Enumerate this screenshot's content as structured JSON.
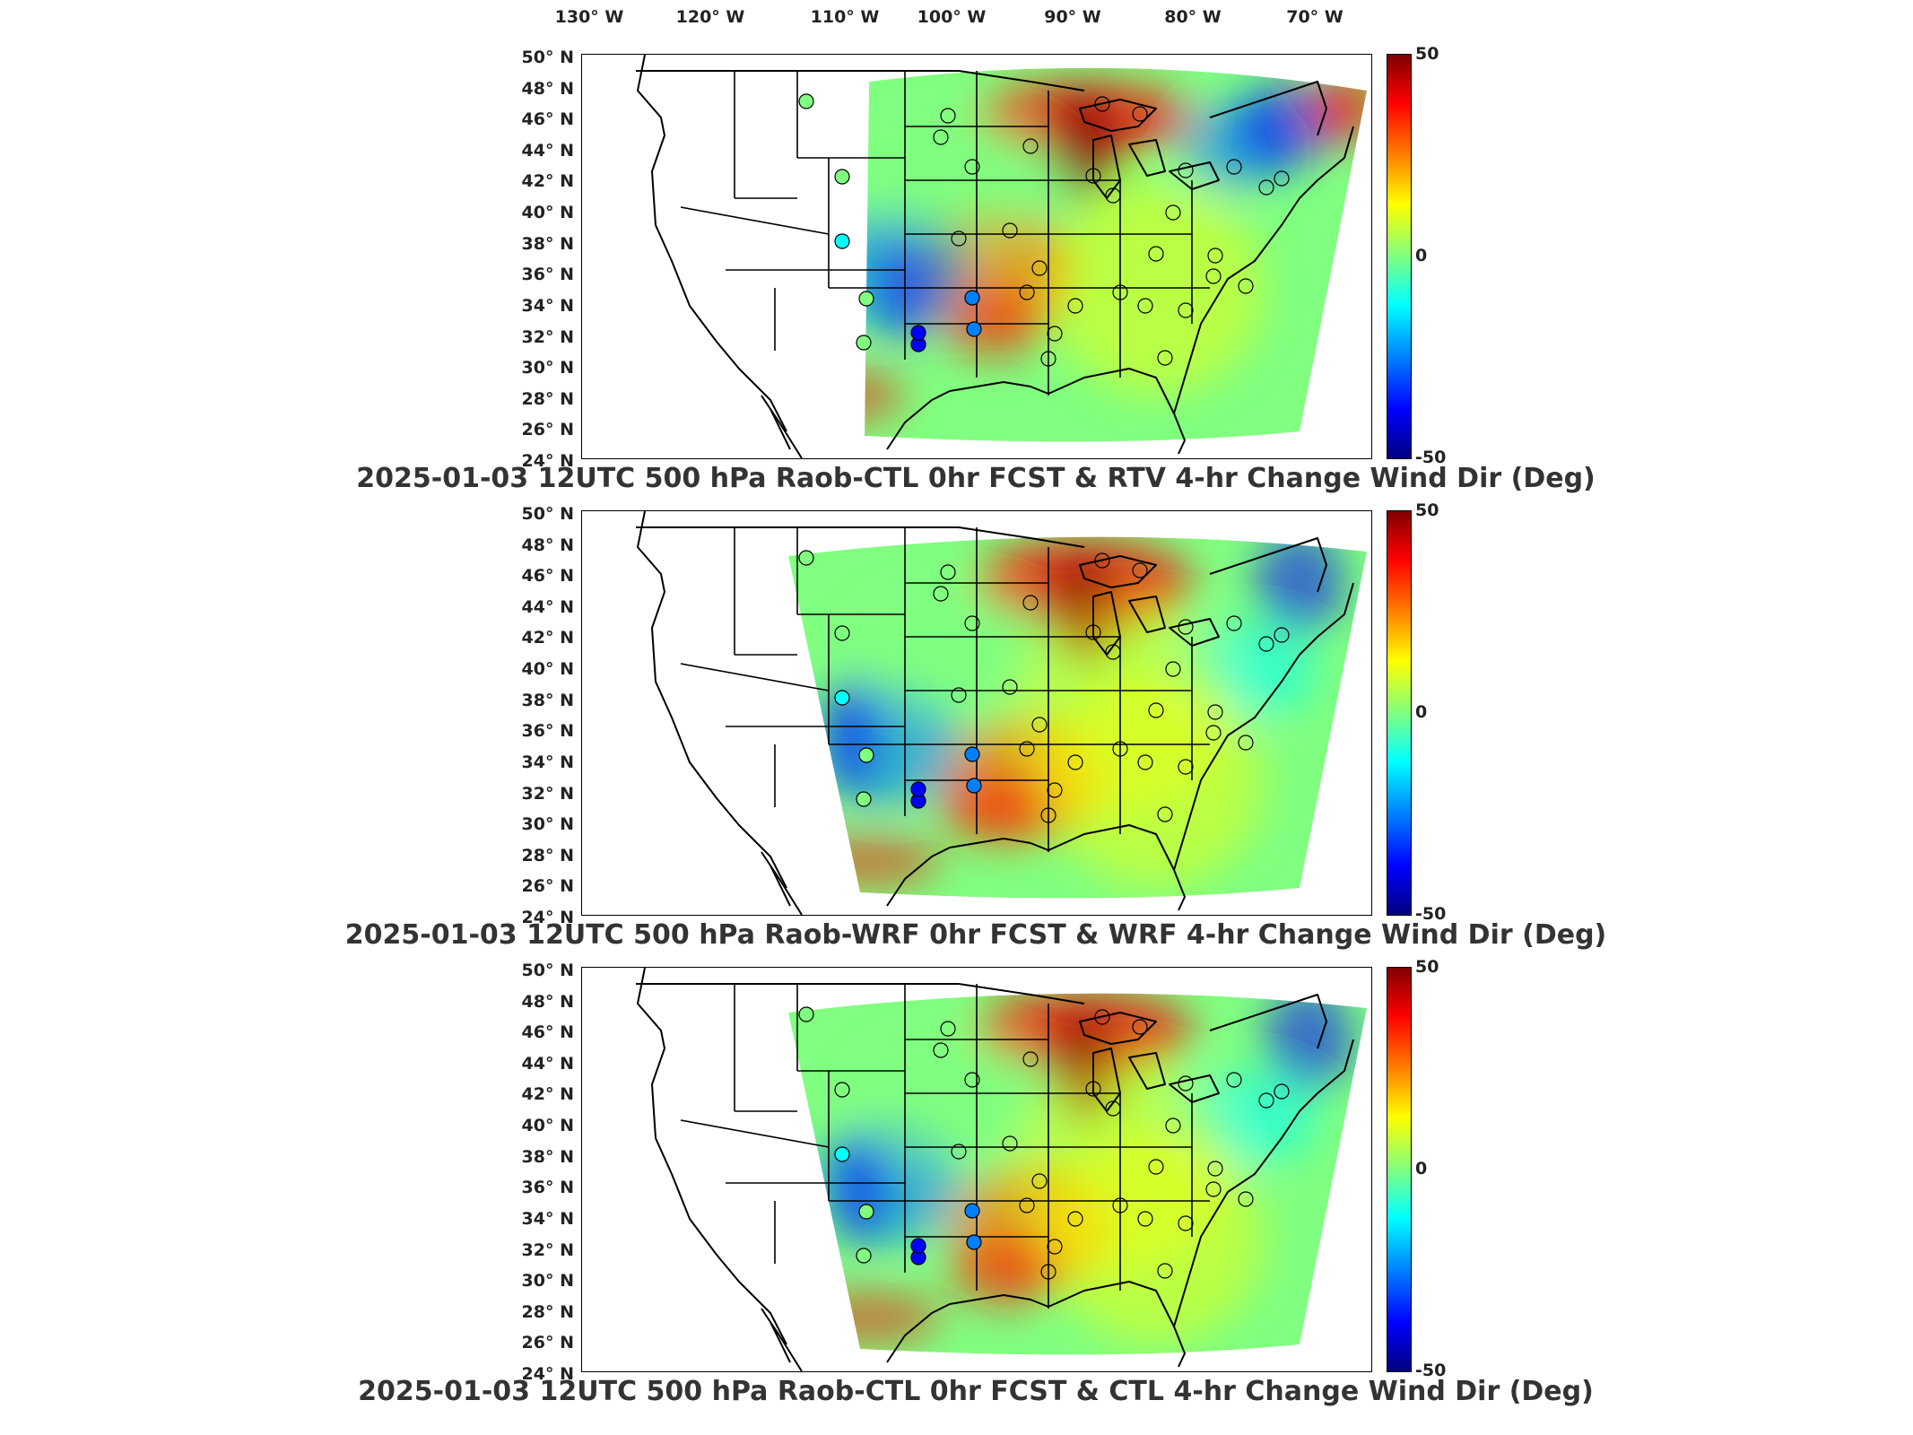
{
  "lon_ticks": [
    "130° W",
    "120° W",
    "110° W",
    "100° W",
    "90° W",
    "80° W",
    "70° W"
  ],
  "lat_ticks": [
    "50° N",
    "48° N",
    "46° N",
    "44° N",
    "42° N",
    "40° N",
    "38° N",
    "36° N",
    "34° N",
    "32° N",
    "30° N",
    "28° N",
    "26° N",
    "24° N"
  ],
  "colorbar": {
    "max": "50",
    "mid": "0",
    "min": "-50"
  },
  "colormap": [
    "#800000",
    "#ff0000",
    "#ff8000",
    "#ffff00",
    "#80ff80",
    "#00ffff",
    "#0080ff",
    "#0000ff",
    "#000080"
  ],
  "panels": [
    {
      "title": "2025-01-03 12UTC 500 hPa Raob-CTL 0hr FCST & RTV 4-hr Change Wind Dir (Deg)"
    },
    {
      "title": "2025-01-03 12UTC 500 hPa Raob-WRF 0hr FCST & WRF 4-hr Change Wind Dir (Deg)"
    },
    {
      "title": "2025-01-03 12UTC 500 hPa Raob-CTL 0hr FCST & CTL 4-hr Change Wind Dir (Deg)"
    }
  ]
}
